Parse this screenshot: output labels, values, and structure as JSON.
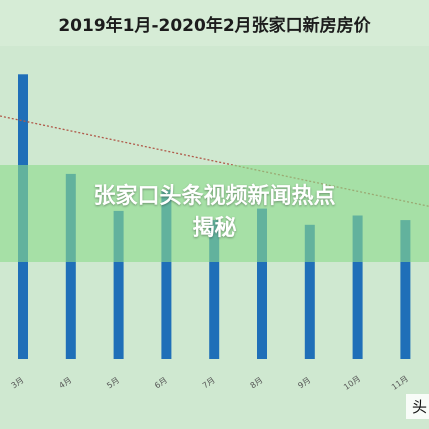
{
  "chart_data": {
    "type": "bar",
    "title": "2019年1月-2020年2月张家口新房房价",
    "categories": [
      "3月",
      "4月",
      "5月",
      "6月",
      "7月",
      "8月",
      "9月",
      "10月",
      "11月"
    ],
    "values": [
      12300,
      8000,
      6400,
      7300,
      6000,
      6500,
      5800,
      6200,
      6000
    ],
    "ylim": [
      0,
      14000
    ],
    "trendline": {
      "style": "dotted",
      "start": 10500,
      "end": 6600
    },
    "grid": false,
    "legend": "none",
    "colors": {
      "bar": "#1f6fb8",
      "trend": "#b05a4a",
      "background": "#cfe8d0"
    }
  },
  "overlay": {
    "line1": "张家口头条视频新闻热点",
    "line2": "揭秘"
  },
  "watermark": "头"
}
